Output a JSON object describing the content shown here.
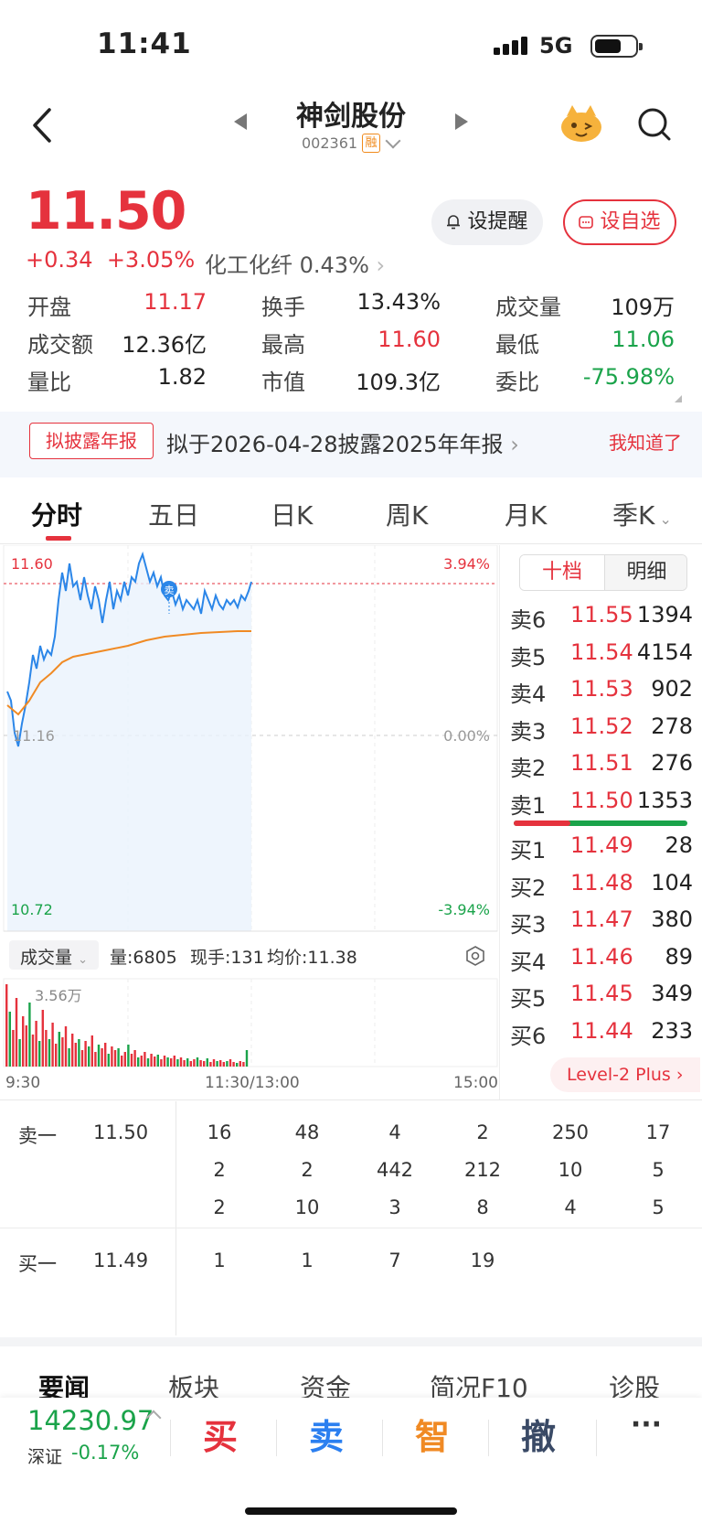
{
  "status": {
    "time": "11:41",
    "network": "5G"
  },
  "header": {
    "name": "神剑股份",
    "code": "002361",
    "margin_badge": "融"
  },
  "quote": {
    "price": "11.50",
    "change": "+0.34",
    "change_pct": "+3.05%",
    "sector_name": "化工化纤",
    "sector_pct": "0.43%",
    "alert_label": "设提醒",
    "fav_label": "设自选"
  },
  "stats": {
    "open_label": "开盘",
    "open": "11.17",
    "turnover_label": "换手",
    "turnover": "13.43%",
    "volume_label": "成交量",
    "volume": "109万",
    "amount_label": "成交额",
    "amount": "12.36亿",
    "high_label": "最高",
    "high": "11.60",
    "low_label": "最低",
    "low": "11.06",
    "vol_ratio_label": "量比",
    "vol_ratio": "1.82",
    "mcap_label": "市值",
    "mcap": "109.3亿",
    "bid_ratio_label": "委比",
    "bid_ratio": "-75.98%"
  },
  "notice": {
    "tag": "拟披露年报",
    "text": "拟于2026-04-28披露2025年年报",
    "dismiss": "我知道了"
  },
  "tabs": [
    "分时",
    "五日",
    "日K",
    "周K",
    "月K",
    "季K"
  ],
  "chart": {
    "y_top": "11.60",
    "y_mid": "11.16",
    "y_bot": "10.72",
    "pct_top": "3.94%",
    "pct_mid": "0.00%",
    "pct_bot": "-3.94%",
    "sell_marker": "卖",
    "vol_title": "成交量",
    "vol_amount": "量:6805",
    "vol_current": "现手:131",
    "vol_avg": "均价:11.38",
    "vol_max": "3.56万",
    "x_start": "9:30",
    "x_mid": "11:30/13:00",
    "x_end": "15:00"
  },
  "order_book": {
    "tab_ten": "十档",
    "tab_detail": "明细",
    "asks": [
      {
        "label": "卖6",
        "price": "11.55",
        "qty": "1394"
      },
      {
        "label": "卖5",
        "price": "11.54",
        "qty": "4154"
      },
      {
        "label": "卖4",
        "price": "11.53",
        "qty": "902"
      },
      {
        "label": "卖3",
        "price": "11.52",
        "qty": "278"
      },
      {
        "label": "卖2",
        "price": "11.51",
        "qty": "276"
      },
      {
        "label": "卖1",
        "price": "11.50",
        "qty": "1353"
      }
    ],
    "bids": [
      {
        "label": "买1",
        "price": "11.49",
        "qty": "28"
      },
      {
        "label": "买2",
        "price": "11.48",
        "qty": "104"
      },
      {
        "label": "买3",
        "price": "11.47",
        "qty": "380"
      },
      {
        "label": "买4",
        "price": "11.46",
        "qty": "89"
      },
      {
        "label": "买5",
        "price": "11.45",
        "qty": "349"
      },
      {
        "label": "买6",
        "price": "11.44",
        "qty": "233"
      }
    ],
    "level2": "Level-2 Plus"
  },
  "ticks": {
    "sell_label": "卖一",
    "sell_price": "11.50",
    "sell_rows": [
      [
        "16",
        "48",
        "4",
        "2",
        "250",
        "17"
      ],
      [
        "2",
        "2",
        "442",
        "212",
        "10",
        "5"
      ],
      [
        "2",
        "10",
        "3",
        "8",
        "4",
        "5"
      ]
    ],
    "buy_label": "买一",
    "buy_price": "11.49",
    "buy_rows": [
      [
        "1",
        "1",
        "7",
        "19"
      ]
    ]
  },
  "news_tabs": [
    "要闻",
    "板块",
    "资金",
    "简况F10",
    "诊股"
  ],
  "bottom": {
    "index_value": "14230.97",
    "index_name": "深证",
    "index_chg": "-0.17%",
    "buy": "买",
    "sell": "卖",
    "smart": "智",
    "cancel": "撤",
    "more": "···"
  }
}
